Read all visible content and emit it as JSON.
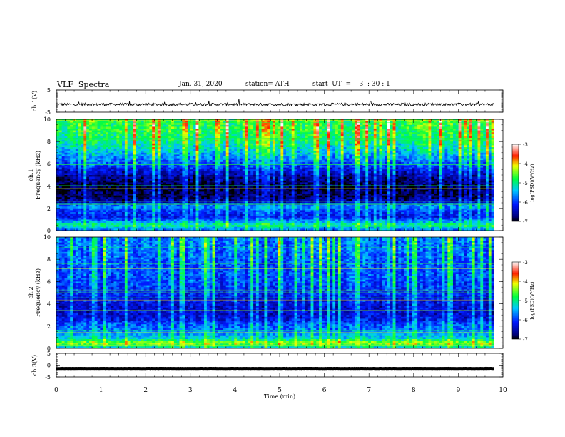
{
  "header": {
    "title": "VLF  Spectra",
    "date": "Jan. 31, 2020",
    "station": "station= ATH",
    "start": "start  UT  =    3  : 30 : 1"
  },
  "chart_data": [
    {
      "type": "line",
      "name": "ch1-waveform",
      "ylabel": "ch.1(V)",
      "ylim": [
        -5,
        5
      ],
      "yticks": [
        "5",
        "-5"
      ],
      "xlim": [
        0,
        10
      ],
      "x_end_min": 9.8,
      "baseline": -1.5,
      "noise_amplitude": 0.6,
      "color": "#000000"
    },
    {
      "type": "heatmap",
      "name": "ch1-spectrogram",
      "ylabel_line1": "ch.1",
      "ylabel_line2": "Frequency  (kHz)",
      "ylim": [
        0,
        10
      ],
      "yticks": [
        "0",
        "2",
        "4",
        "6",
        "8",
        "10"
      ],
      "xlim": [
        0,
        10
      ],
      "x_end_min": 9.8,
      "colorbar": {
        "label": "log(PSD)(V²/Hz)",
        "ticks": [
          "-3",
          "-4",
          "-5",
          "-6",
          "-7"
        ],
        "range": [
          -7,
          -3
        ]
      },
      "psd_profile": [
        {
          "f": 0.0,
          "v": -5.8
        },
        {
          "f": 0.5,
          "v": -5.0
        },
        {
          "f": 0.8,
          "v": -5.6
        },
        {
          "f": 1.2,
          "v": -6.2
        },
        {
          "f": 1.8,
          "v": -6.0
        },
        {
          "f": 2.2,
          "v": -5.6
        },
        {
          "f": 2.6,
          "v": -6.5
        },
        {
          "f": 3.0,
          "v": -6.8
        },
        {
          "f": 4.0,
          "v": -6.9
        },
        {
          "f": 5.0,
          "v": -6.5
        },
        {
          "f": 6.0,
          "v": -5.9
        },
        {
          "f": 7.0,
          "v": -5.4
        },
        {
          "f": 8.0,
          "v": -5.0
        },
        {
          "f": 9.0,
          "v": -4.8
        },
        {
          "f": 10.0,
          "v": -4.7
        }
      ]
    },
    {
      "type": "heatmap",
      "name": "ch2-spectrogram",
      "ylabel_line1": "ch.2",
      "ylabel_line2": "Frequency  (kHz)",
      "ylim": [
        0,
        10
      ],
      "yticks": [
        "0",
        "2",
        "4",
        "6",
        "8",
        "10"
      ],
      "xlim": [
        0,
        10
      ],
      "x_end_min": 9.8,
      "colorbar": {
        "label": "log(PSD)(V²/Hz)",
        "ticks": [
          "-3",
          "-4",
          "-5",
          "-6",
          "-7"
        ],
        "range": [
          -7,
          -3
        ]
      },
      "psd_profile": [
        {
          "f": 0.0,
          "v": -5.4
        },
        {
          "f": 0.5,
          "v": -4.4
        },
        {
          "f": 0.9,
          "v": -5.3
        },
        {
          "f": 1.5,
          "v": -5.7
        },
        {
          "f": 2.2,
          "v": -5.9
        },
        {
          "f": 2.7,
          "v": -6.3
        },
        {
          "f": 3.5,
          "v": -6.4
        },
        {
          "f": 4.5,
          "v": -6.2
        },
        {
          "f": 5.5,
          "v": -6.0
        },
        {
          "f": 6.5,
          "v": -5.9
        },
        {
          "f": 7.5,
          "v": -5.9
        },
        {
          "f": 8.5,
          "v": -5.8
        },
        {
          "f": 10.0,
          "v": -5.7
        }
      ]
    },
    {
      "type": "line",
      "name": "ch3-waveform",
      "ylabel": "ch.3(V)",
      "ylim": [
        -5,
        5
      ],
      "yticks": [
        "5",
        "0",
        "-5"
      ],
      "xlim": [
        0,
        10
      ],
      "x_end_min": 9.8,
      "baseline": -1.4,
      "noise_amplitude": 0.05,
      "color": "#000000"
    }
  ],
  "x_axis": {
    "label": "Time  (min)",
    "ticks": [
      "0",
      "1",
      "2",
      "3",
      "4",
      "5",
      "6",
      "7",
      "8",
      "9",
      "10"
    ]
  }
}
